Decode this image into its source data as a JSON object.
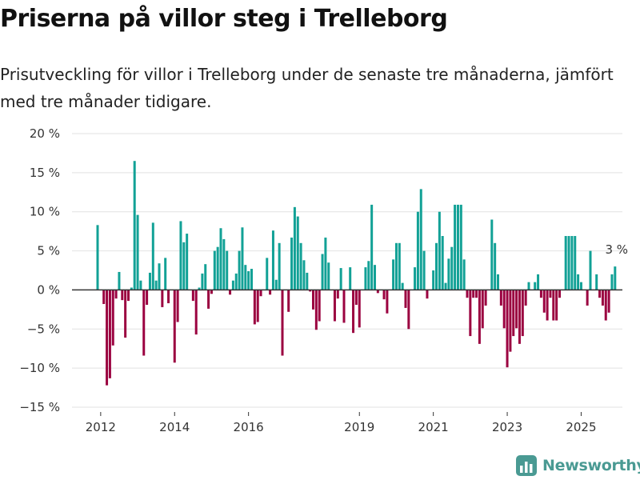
{
  "title": "Priserna på villor steg i Trelleborg",
  "subtitle": "Prisutveckling för villor i Trelleborg under de senaste tre månaderna, jämfört med tre månader tidigare.",
  "logo_text": "Newsworthy",
  "colors": {
    "positive": "#12a196",
    "negative": "#9b0240",
    "grid": "#e2e2e2",
    "zero_line": "#333333",
    "logo": "#4a9a93"
  },
  "chart_data": {
    "type": "bar",
    "x_start": "2011-12",
    "x_ticks": [
      "2012",
      "2014",
      "2016",
      "2019",
      "2021",
      "2023",
      "2025"
    ],
    "y_ticks": [
      "20 %",
      "15 %",
      "10 %",
      "5 %",
      "0 %",
      "−5 %",
      "−10 %",
      "−15 %"
    ],
    "ylim": [
      -15,
      20
    ],
    "grid": true,
    "annotation": "3 %",
    "values": [
      8.3,
      0,
      -1.8,
      -12.2,
      -11.3,
      -7.1,
      -1.1,
      2.3,
      -1.3,
      -6.1,
      -1.4,
      0.3,
      16.5,
      9.6,
      1.2,
      -8.4,
      -1.9,
      2.2,
      8.6,
      1.2,
      3.4,
      -2.2,
      4.1,
      -1.7,
      0,
      -9.3,
      -4.1,
      8.8,
      6.1,
      7.2,
      0,
      -1.4,
      -5.7,
      0.3,
      2.1,
      3.3,
      -2.4,
      -0.5,
      5.0,
      5.5,
      7.9,
      6.5,
      5.0,
      -0.6,
      1.2,
      2.1,
      5.0,
      8.0,
      3.2,
      2.4,
      2.7,
      -4.4,
      -4.1,
      -0.8,
      0,
      4.1,
      -0.6,
      7.6,
      1.3,
      6.0,
      -8.4,
      0,
      -2.8,
      6.7,
      10.6,
      9.4,
      6.0,
      3.8,
      2.2,
      -0.2,
      -2.5,
      -5.1,
      -4.0,
      4.6,
      6.7,
      3.5,
      0,
      -4.0,
      -1.1,
      2.8,
      -4.2,
      0,
      2.9,
      -5.5,
      -1.9,
      -4.8,
      0,
      2.9,
      3.7,
      10.9,
      3.2,
      -0.4,
      0,
      -1.2,
      -3.0,
      0,
      3.9,
      6.0,
      6.0,
      0.9,
      -2.3,
      -5.0,
      0,
      2.9,
      10.0,
      12.9,
      5.0,
      -1.1,
      0,
      2.5,
      6.0,
      10.0,
      6.9,
      0.9,
      4.0,
      5.5,
      10.9,
      10.9,
      10.9,
      3.9,
      -1.0,
      -5.9,
      -1.0,
      -1.0,
      -6.9,
      -4.9,
      -2.0,
      0,
      9.0,
      6.0,
      2.0,
      -2.0,
      -4.9,
      -9.9,
      -7.9,
      -5.9,
      -4.9,
      -6.9,
      -5.9,
      -2.0,
      1.0,
      0,
      1.0,
      2.0,
      -1.0,
      -2.9,
      -3.9,
      -1.0,
      -3.9,
      -3.9,
      -1.0,
      0,
      6.9,
      6.9,
      6.9,
      6.9,
      2.0,
      1.0,
      0,
      -2.0,
      5.0,
      0,
      2.0,
      -1.0,
      -2.0,
      -3.9,
      -2.9,
      2.0,
      3.0
    ]
  }
}
